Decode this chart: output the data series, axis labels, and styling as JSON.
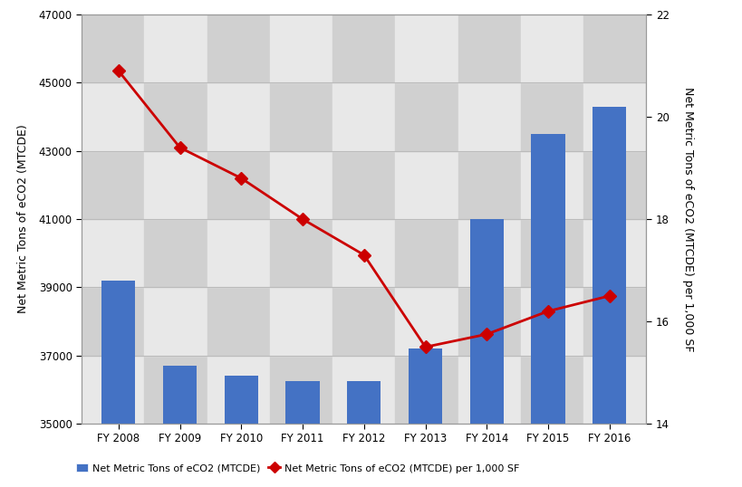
{
  "categories": [
    "FY 2008",
    "FY 2009",
    "FY 2010",
    "FY 2011",
    "FY 2012",
    "FY 2013",
    "FY 2014",
    "FY 2015",
    "FY 2016"
  ],
  "bar_values": [
    39200,
    36700,
    36400,
    36250,
    36250,
    37200,
    41000,
    43500,
    44300
  ],
  "line_values": [
    20.9,
    19.4,
    18.8,
    18.0,
    17.3,
    15.5,
    15.75,
    16.2,
    16.5
  ],
  "bar_color": "#4472C4",
  "line_color": "#CC0000",
  "left_ylabel": "Net Metric Tons of eCO2 (MTCDE)",
  "right_ylabel": "Net Metric Tons of eCO2 (MTCDE) per 1,000 SF",
  "left_ylim": [
    35000,
    47000
  ],
  "left_yticks": [
    35000,
    37000,
    39000,
    41000,
    43000,
    45000,
    47000
  ],
  "right_ylim": [
    14,
    22
  ],
  "right_yticks": [
    14,
    16,
    18,
    20,
    22
  ],
  "legend_bar": "Net Metric Tons of eCO2 (MTCDE)",
  "legend_line": "Net Metric Tons of eCO2 (MTCDE) per 1,000 SF",
  "checker_light": "#E8E8E8",
  "checker_dark": "#D0D0D0",
  "grid_color": "#BBBBBB",
  "bar_width": 0.55
}
